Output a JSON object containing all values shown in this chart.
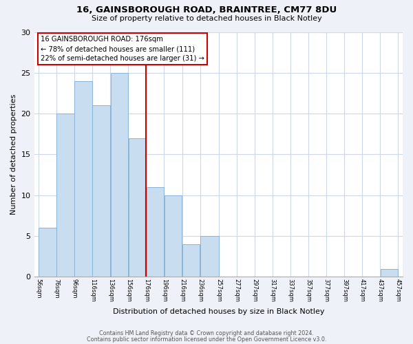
{
  "title": "16, GAINSBOROUGH ROAD, BRAINTREE, CM77 8DU",
  "subtitle": "Size of property relative to detached houses in Black Notley",
  "xlabel": "Distribution of detached houses by size in Black Notley",
  "ylabel": "Number of detached properties",
  "bar_edges": [
    56,
    76,
    96,
    116,
    136,
    156,
    176,
    196,
    216,
    236,
    257,
    277,
    297,
    317,
    337,
    357,
    377,
    397,
    417,
    437,
    457
  ],
  "bar_heights": [
    6,
    20,
    24,
    21,
    25,
    17,
    11,
    10,
    4,
    5,
    0,
    0,
    0,
    0,
    0,
    0,
    0,
    0,
    0,
    1
  ],
  "bar_color": "#c9ddf0",
  "bar_edgecolor": "#8ab4d8",
  "vline_x": 176,
  "vline_color": "#cc0000",
  "annotation_title": "16 GAINSBOROUGH ROAD: 176sqm",
  "annotation_line1": "← 78% of detached houses are smaller (111)",
  "annotation_line2": "22% of semi-detached houses are larger (31) →",
  "annotation_box_edgecolor": "#cc0000",
  "ylim": [
    0,
    30
  ],
  "tick_labels": [
    "56sqm",
    "76sqm",
    "96sqm",
    "116sqm",
    "136sqm",
    "156sqm",
    "176sqm",
    "196sqm",
    "216sqm",
    "236sqm",
    "257sqm",
    "277sqm",
    "297sqm",
    "317sqm",
    "337sqm",
    "357sqm",
    "377sqm",
    "397sqm",
    "417sqm",
    "437sqm",
    "457sqm"
  ],
  "footer_line1": "Contains HM Land Registry data © Crown copyright and database right 2024.",
  "footer_line2": "Contains public sector information licensed under the Open Government Licence v3.0.",
  "background_color": "#eef2f8",
  "plot_background_color": "#ffffff",
  "grid_color": "#ccd8e8"
}
